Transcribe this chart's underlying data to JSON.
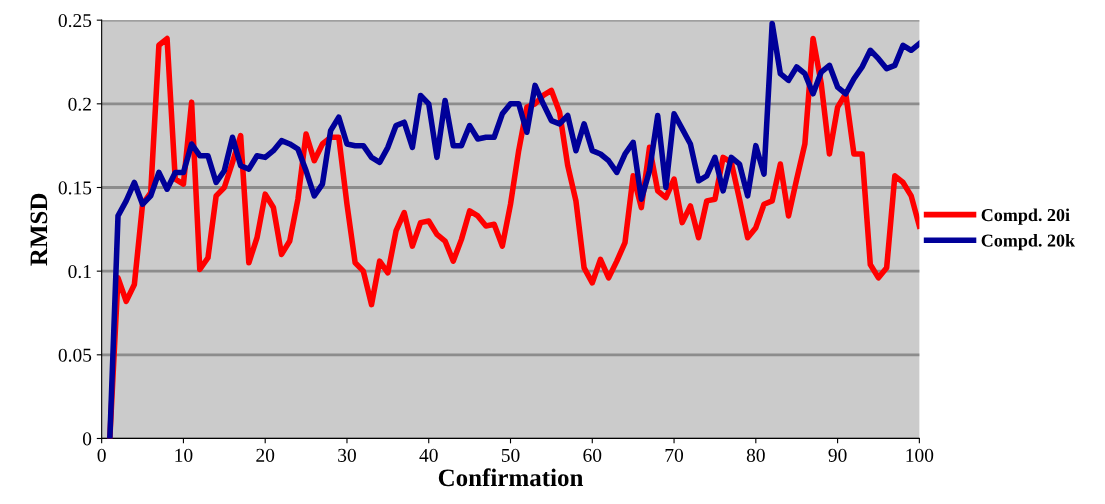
{
  "chart_data": {
    "type": "line",
    "xlabel": "Confirmation",
    "ylabel": "RMSD",
    "x": [
      1,
      2,
      3,
      4,
      5,
      6,
      7,
      8,
      9,
      10,
      11,
      12,
      13,
      14,
      15,
      16,
      17,
      18,
      19,
      20,
      21,
      22,
      23,
      24,
      25,
      26,
      27,
      28,
      29,
      30,
      31,
      32,
      33,
      34,
      35,
      36,
      37,
      38,
      39,
      40,
      41,
      42,
      43,
      44,
      45,
      46,
      47,
      48,
      49,
      50,
      51,
      52,
      53,
      54,
      55,
      56,
      57,
      58,
      59,
      60,
      61,
      62,
      63,
      64,
      65,
      66,
      67,
      68,
      69,
      70,
      71,
      72,
      73,
      74,
      75,
      76,
      77,
      78,
      79,
      80,
      81,
      82,
      83,
      84,
      85,
      86,
      87,
      88,
      89,
      90,
      91,
      92,
      93,
      94,
      95,
      96,
      97,
      98,
      99,
      100
    ],
    "series": [
      {
        "name": "Compd. 20i",
        "color": "#ff0000",
        "values": [
          0,
          0.096,
          0.082,
          0.092,
          0.14,
          0.147,
          0.235,
          0.239,
          0.155,
          0.152,
          0.201,
          0.101,
          0.108,
          0.145,
          0.15,
          0.165,
          0.181,
          0.105,
          0.12,
          0.146,
          0.138,
          0.11,
          0.118,
          0.143,
          0.182,
          0.166,
          0.176,
          0.18,
          0.18,
          0.14,
          0.105,
          0.1,
          0.08,
          0.106,
          0.099,
          0.124,
          0.135,
          0.115,
          0.129,
          0.13,
          0.122,
          0.118,
          0.106,
          0.119,
          0.136,
          0.133,
          0.127,
          0.128,
          0.115,
          0.14,
          0.172,
          0.198,
          0.2,
          0.205,
          0.208,
          0.195,
          0.163,
          0.142,
          0.102,
          0.093,
          0.107,
          0.096,
          0.106,
          0.117,
          0.157,
          0.138,
          0.174,
          0.148,
          0.144,
          0.155,
          0.129,
          0.139,
          0.12,
          0.142,
          0.143,
          0.168,
          0.165,
          0.143,
          0.12,
          0.126,
          0.14,
          0.142,
          0.164,
          0.133,
          0.155,
          0.176,
          0.239,
          0.212,
          0.17,
          0.198,
          0.206,
          0.17,
          0.17,
          0.104,
          0.096,
          0.102,
          0.157,
          0.153,
          0.145,
          0.127
        ]
      },
      {
        "name": "Compd. 20k",
        "color": "#000099",
        "values": [
          0,
          0.133,
          0.142,
          0.153,
          0.14,
          0.145,
          0.159,
          0.149,
          0.159,
          0.159,
          0.176,
          0.169,
          0.169,
          0.153,
          0.16,
          0.18,
          0.163,
          0.161,
          0.169,
          0.168,
          0.172,
          0.178,
          0.176,
          0.173,
          0.16,
          0.145,
          0.152,
          0.184,
          0.192,
          0.176,
          0.175,
          0.175,
          0.168,
          0.165,
          0.174,
          0.187,
          0.189,
          0.174,
          0.205,
          0.2,
          0.168,
          0.202,
          0.175,
          0.175,
          0.187,
          0.179,
          0.18,
          0.18,
          0.194,
          0.2,
          0.2,
          0.183,
          0.211,
          0.2,
          0.19,
          0.188,
          0.193,
          0.172,
          0.188,
          0.172,
          0.17,
          0.166,
          0.159,
          0.17,
          0.177,
          0.143,
          0.16,
          0.193,
          0.15,
          0.194,
          0.185,
          0.176,
          0.154,
          0.157,
          0.168,
          0.148,
          0.168,
          0.164,
          0.145,
          0.175,
          0.158,
          0.248,
          0.218,
          0.214,
          0.222,
          0.218,
          0.206,
          0.219,
          0.223,
          0.21,
          0.206,
          0.215,
          0.222,
          0.232,
          0.227,
          0.221,
          0.223,
          0.235,
          0.232,
          0.236
        ]
      }
    ],
    "xlim": [
      0,
      100
    ],
    "xticks": [
      0,
      10,
      20,
      30,
      40,
      50,
      60,
      70,
      80,
      90,
      100
    ],
    "ylim": [
      0,
      0.25
    ],
    "yticks": [
      0,
      0.05,
      0.1,
      0.15,
      0.2,
      0.25
    ],
    "grid": "y",
    "legend": "right",
    "marker": "none",
    "line_style": "solid"
  }
}
